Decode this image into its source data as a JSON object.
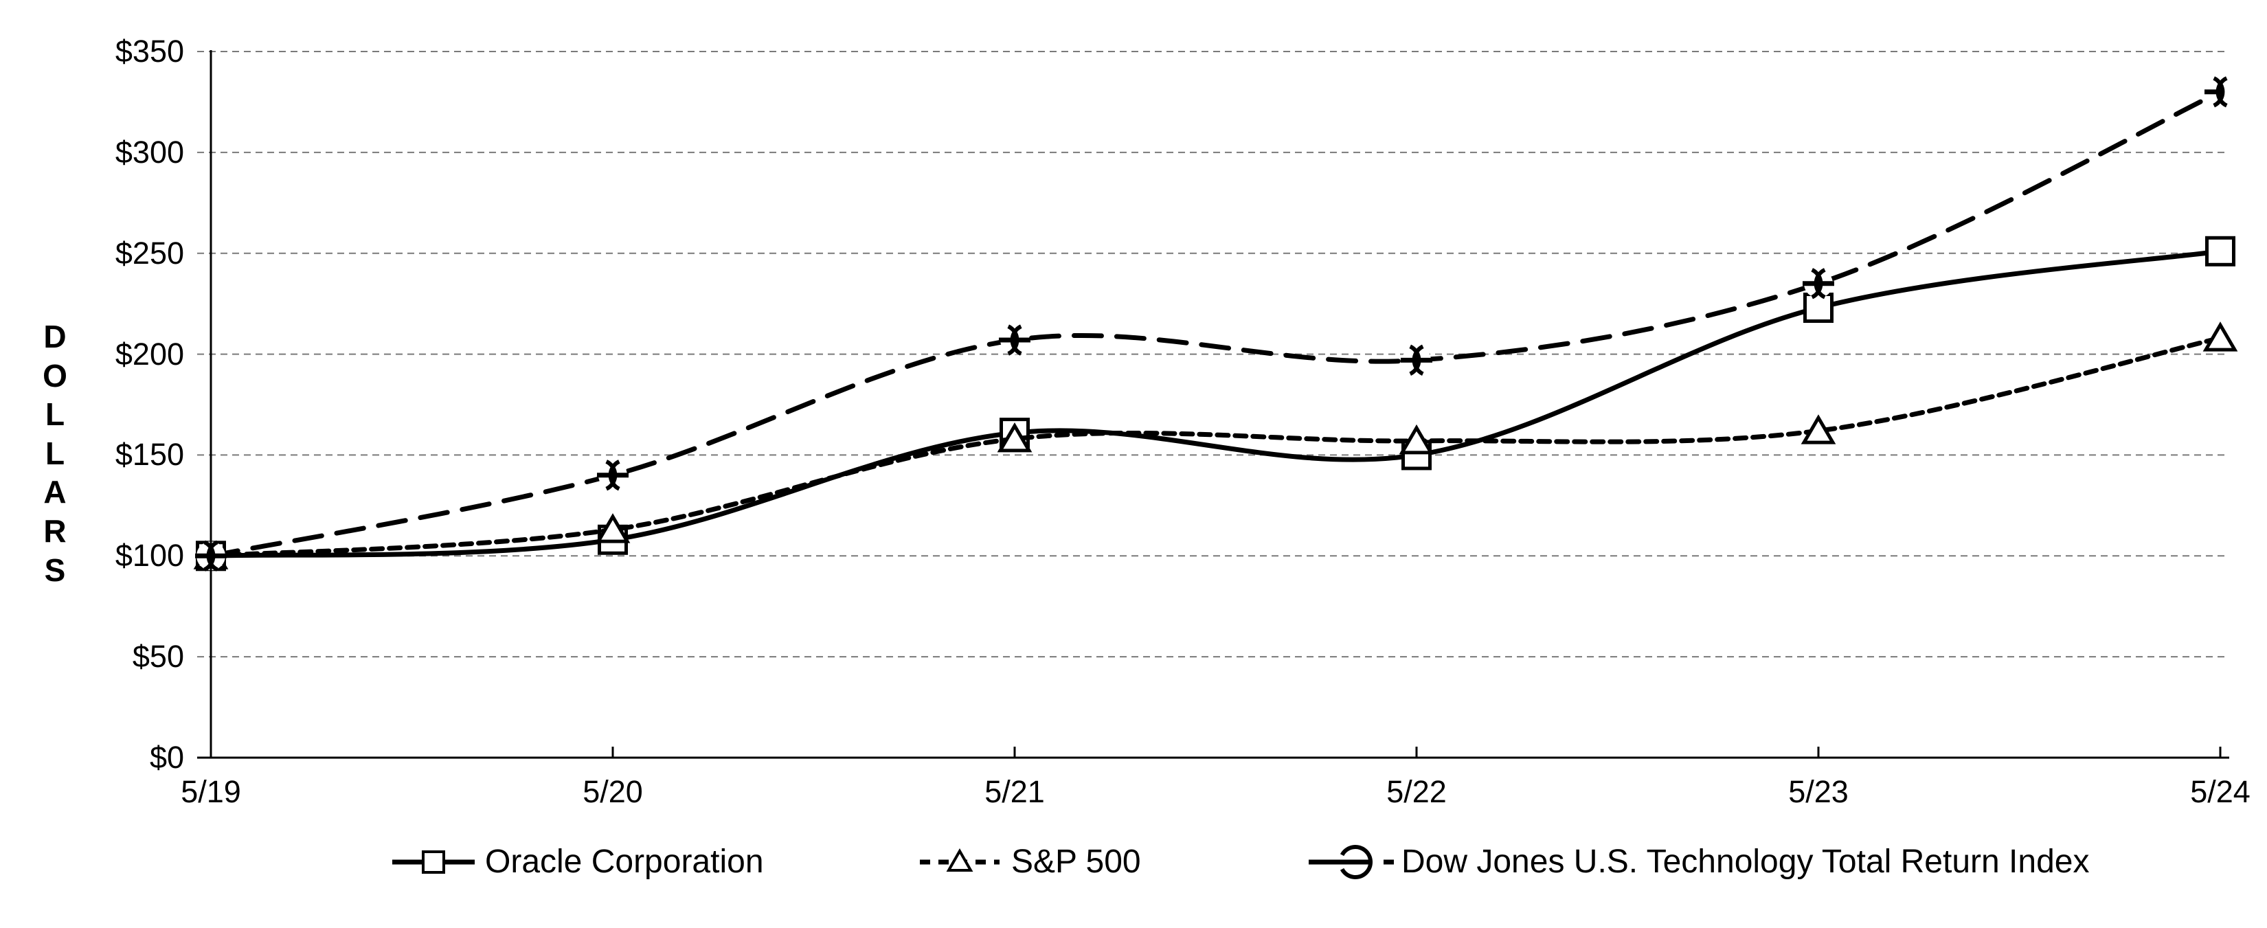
{
  "chart_data": {
    "type": "line",
    "title": "",
    "ylabel": "DOLLARS",
    "categories": [
      "5/19",
      "5/20",
      "5/21",
      "5/22",
      "5/23",
      "5/24"
    ],
    "series": [
      {
        "name": "Oracle Corporation",
        "marker": "open-square",
        "line_style": "solid",
        "values": [
          100,
          108,
          161,
          150,
          223,
          251
        ]
      },
      {
        "name": "S&P 500",
        "marker": "open-triangle",
        "line_style": "short-dash",
        "values": [
          100,
          113,
          158,
          157,
          162,
          208
        ]
      },
      {
        "name": "Dow Jones U.S. Technology Total Return Index",
        "marker": "open-circle-dash",
        "line_style": "long-dash",
        "values": [
          100,
          140,
          207,
          197,
          235,
          330
        ]
      }
    ],
    "y_ticks": [
      "$350",
      "$300",
      "$250",
      "$200",
      "$150",
      "$100",
      "$50",
      "$0"
    ],
    "ylim": [
      0,
      350
    ],
    "y_step": 50,
    "grid": "horizontal-dashed",
    "legend_position": "bottom",
    "colors": {
      "series": "#000000",
      "grid": "#7a7a7a",
      "axis": "#000000",
      "background": "#ffffff",
      "marker_fill": "#ffffff"
    }
  }
}
